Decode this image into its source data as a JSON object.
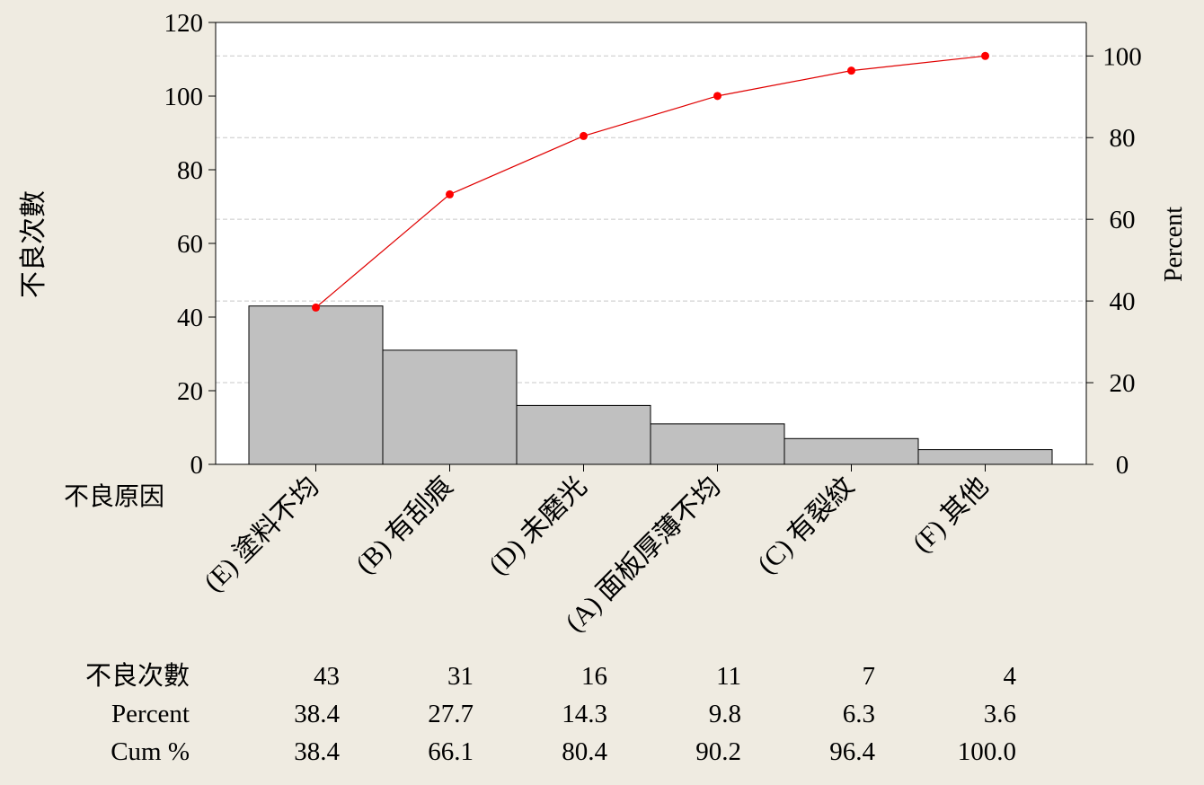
{
  "chart_data": {
    "type": "bar",
    "chart_kind": "pareto",
    "categories": [
      "(E) 塗料不均",
      "(B) 有刮痕",
      "(D) 未磨光",
      "(A) 面板厚薄不均",
      "(C) 有裂紋",
      "(F) 其他"
    ],
    "category_axis_label": "不良原因",
    "series": [
      {
        "name": "不良次數",
        "type": "bar",
        "axis": "left",
        "values": [
          43,
          31,
          16,
          11,
          7,
          4
        ]
      },
      {
        "name": "Cum %",
        "type": "line",
        "axis": "right",
        "values": [
          38.4,
          66.1,
          80.4,
          90.2,
          96.4,
          100.0
        ]
      }
    ],
    "ylabel": "不良次數",
    "y2label": "Percent",
    "ylim": [
      0,
      120
    ],
    "y2lim": [
      0,
      108.2
    ],
    "yticks": [
      0,
      20,
      40,
      60,
      80,
      100,
      120
    ],
    "y2ticks": [
      0,
      20,
      40,
      60,
      80,
      100
    ],
    "grid": true,
    "colors": {
      "bar_fill": "#c0c0c0",
      "bar_stroke": "#000000",
      "line": "#e00000",
      "marker": "#ff0000",
      "grid": "#c8c8c8",
      "background": "#efebe1",
      "plot_background": "#ffffff"
    },
    "table": {
      "row_labels": [
        "不良次數",
        "Percent",
        "Cum %"
      ],
      "rows": [
        [
          "43",
          "31",
          "16",
          "11",
          "7",
          "4"
        ],
        [
          "38.4",
          "27.7",
          "14.3",
          "9.8",
          "6.3",
          "3.6"
        ],
        [
          "38.4",
          "66.1",
          "80.4",
          "90.2",
          "96.4",
          "100.0"
        ]
      ]
    }
  }
}
